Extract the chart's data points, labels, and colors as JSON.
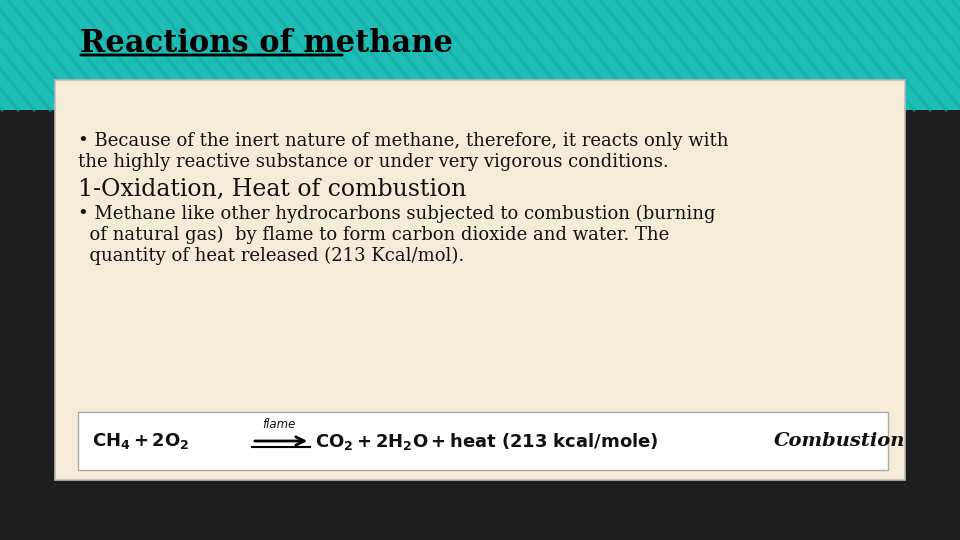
{
  "title": "Reactions of methane",
  "title_color": "#000000",
  "title_fontsize": 22,
  "content_bg": "#f5ecd7",
  "outer_bg": "#1e1e1e",
  "bullet1_line1": "• Because of the inert nature of methane, therefore, it reacts only with",
  "bullet1_line2": "the highly reactive substance or under very vigorous conditions.",
  "section1": "1-Oxidation, Heat of combustion",
  "bullet2_line1": "• Methane like other hydrocarbons subjected to combustion (burning",
  "bullet2_line2": "  of natural gas)  by flame to form carbon dioxide and water. The",
  "bullet2_line3": "  quantity of heat released (213 Kcal/mol).",
  "equation_box_bg": "#ffffff",
  "combustion_label": "Combustion",
  "teal_color": "#1ebdb5",
  "stripe_color": "#17a89f"
}
